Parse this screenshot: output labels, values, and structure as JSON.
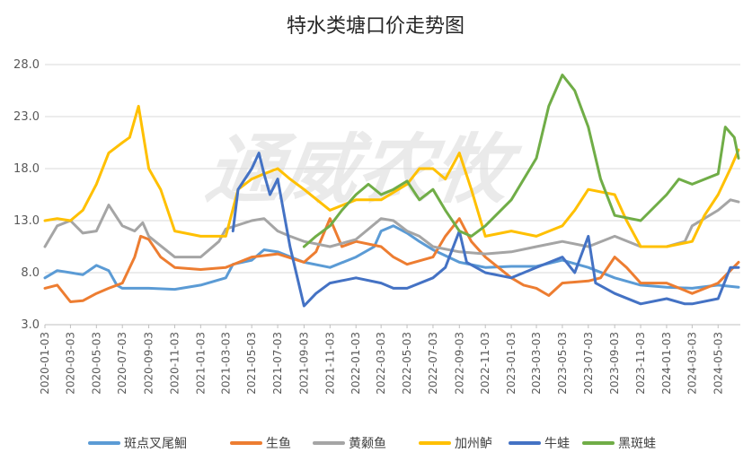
{
  "chart_data": {
    "type": "line",
    "title": "特水类塘口价走势图",
    "watermark": "通威农牧",
    "y_ticks": [
      "3.0",
      "8.0",
      "13.0",
      "18.0",
      "23.0",
      "28.0"
    ],
    "ylim": [
      3,
      28
    ],
    "x_ticks": [
      "2020-01-03",
      "2020-03-03",
      "2020-05-03",
      "2020-07-03",
      "2020-09-03",
      "2020-11-03",
      "2021-01-03",
      "2021-03-03",
      "2021-05-03",
      "2021-07-03",
      "2021-09-03",
      "2021-11-03",
      "2022-01-03",
      "2022-03-03",
      "2022-05-03",
      "2022-07-03",
      "2022-09-03",
      "2022-11-03",
      "2023-01-03",
      "2023-03-03",
      "2023-05-03",
      "2023-07-03",
      "2023-09-03",
      "2023-11-03",
      "2024-01-03",
      "2024-03-03",
      "2024-05-03"
    ],
    "legend_position": "bottom",
    "grid": true,
    "series": [
      {
        "name": "斑点叉尾鮰",
        "color": "#5b9bd5",
        "points": [
          [
            "2020-01-03",
            7.5
          ],
          [
            "2020-02-01",
            8.2
          ],
          [
            "2020-03-03",
            8.0
          ],
          [
            "2020-04-01",
            7.8
          ],
          [
            "2020-05-03",
            8.7
          ],
          [
            "2020-06-01",
            8.2
          ],
          [
            "2020-06-20",
            6.8
          ],
          [
            "2020-07-03",
            6.5
          ],
          [
            "2020-09-03",
            6.5
          ],
          [
            "2020-11-03",
            6.4
          ],
          [
            "2021-01-03",
            6.8
          ],
          [
            "2021-03-03",
            7.5
          ],
          [
            "2021-03-20",
            8.8
          ],
          [
            "2021-05-03",
            9.2
          ],
          [
            "2021-06-01",
            10.2
          ],
          [
            "2021-07-03",
            10.0
          ],
          [
            "2021-09-03",
            9.0
          ],
          [
            "2021-11-03",
            8.5
          ],
          [
            "2022-01-03",
            9.5
          ],
          [
            "2022-02-15",
            10.5
          ],
          [
            "2022-03-03",
            12.0
          ],
          [
            "2022-04-01",
            12.5
          ],
          [
            "2022-05-03",
            11.8
          ],
          [
            "2022-06-01",
            11.0
          ],
          [
            "2022-07-03",
            10.2
          ],
          [
            "2022-09-03",
            9.0
          ],
          [
            "2022-11-03",
            8.5
          ],
          [
            "2023-01-03",
            8.6
          ],
          [
            "2023-03-03",
            8.6
          ],
          [
            "2023-05-03",
            9.2
          ],
          [
            "2023-07-03",
            8.5
          ],
          [
            "2023-09-03",
            7.5
          ],
          [
            "2023-11-03",
            6.8
          ],
          [
            "2024-01-03",
            6.6
          ],
          [
            "2024-03-03",
            6.5
          ],
          [
            "2024-05-03",
            6.8
          ],
          [
            "2024-06-20",
            6.6
          ]
        ]
      },
      {
        "name": "生鱼",
        "color": "#ed7d31",
        "points": [
          [
            "2020-01-03",
            6.5
          ],
          [
            "2020-02-01",
            6.8
          ],
          [
            "2020-03-03",
            5.2
          ],
          [
            "2020-04-01",
            5.3
          ],
          [
            "2020-05-03",
            6.0
          ],
          [
            "2020-06-01",
            6.5
          ],
          [
            "2020-07-03",
            7.0
          ],
          [
            "2020-08-01",
            9.5
          ],
          [
            "2020-08-15",
            11.5
          ],
          [
            "2020-09-03",
            11.2
          ],
          [
            "2020-10-01",
            9.5
          ],
          [
            "2020-11-03",
            8.5
          ],
          [
            "2021-01-03",
            8.3
          ],
          [
            "2021-03-03",
            8.5
          ],
          [
            "2021-05-03",
            9.5
          ],
          [
            "2021-07-03",
            9.8
          ],
          [
            "2021-09-03",
            9.0
          ],
          [
            "2021-10-01",
            10.0
          ],
          [
            "2021-11-03",
            13.2
          ],
          [
            "2021-12-01",
            10.5
          ],
          [
            "2022-01-03",
            11.0
          ],
          [
            "2022-03-03",
            10.5
          ],
          [
            "2022-04-01",
            9.5
          ],
          [
            "2022-05-03",
            8.8
          ],
          [
            "2022-07-03",
            9.5
          ],
          [
            "2022-08-01",
            11.5
          ],
          [
            "2022-09-03",
            13.2
          ],
          [
            "2022-10-01",
            11.0
          ],
          [
            "2022-11-03",
            9.5
          ],
          [
            "2023-01-03",
            7.5
          ],
          [
            "2023-02-01",
            6.8
          ],
          [
            "2023-03-03",
            6.5
          ],
          [
            "2023-04-01",
            5.8
          ],
          [
            "2023-05-03",
            7.0
          ],
          [
            "2023-07-03",
            7.2
          ],
          [
            "2023-08-01",
            7.5
          ],
          [
            "2023-09-03",
            9.5
          ],
          [
            "2023-10-01",
            8.5
          ],
          [
            "2023-11-03",
            7.0
          ],
          [
            "2024-01-03",
            7.0
          ],
          [
            "2024-03-03",
            6.0
          ],
          [
            "2024-05-03",
            7.0
          ],
          [
            "2024-06-20",
            9.0
          ]
        ]
      },
      {
        "name": "黄颡鱼",
        "color": "#a5a5a5",
        "points": [
          [
            "2020-01-03",
            10.5
          ],
          [
            "2020-02-01",
            12.5
          ],
          [
            "2020-03-03",
            13.0
          ],
          [
            "2020-04-01",
            11.8
          ],
          [
            "2020-05-03",
            12.0
          ],
          [
            "2020-06-01",
            14.5
          ],
          [
            "2020-07-03",
            12.5
          ],
          [
            "2020-08-01",
            12.0
          ],
          [
            "2020-08-20",
            12.8
          ],
          [
            "2020-09-03",
            11.5
          ],
          [
            "2020-11-03",
            9.5
          ],
          [
            "2021-01-03",
            9.5
          ],
          [
            "2021-02-15",
            11.0
          ],
          [
            "2021-03-03",
            12.2
          ],
          [
            "2021-05-03",
            13.0
          ],
          [
            "2021-06-01",
            13.2
          ],
          [
            "2021-07-03",
            12.0
          ],
          [
            "2021-08-01",
            11.5
          ],
          [
            "2021-09-03",
            11.0
          ],
          [
            "2021-11-03",
            10.5
          ],
          [
            "2022-01-03",
            11.2
          ],
          [
            "2022-03-03",
            13.2
          ],
          [
            "2022-04-01",
            13.0
          ],
          [
            "2022-05-03",
            12.0
          ],
          [
            "2022-06-01",
            11.5
          ],
          [
            "2022-07-03",
            10.5
          ],
          [
            "2022-09-03",
            10.0
          ],
          [
            "2022-11-03",
            9.8
          ],
          [
            "2023-01-03",
            10.0
          ],
          [
            "2023-03-03",
            10.5
          ],
          [
            "2023-05-03",
            11.0
          ],
          [
            "2023-07-03",
            10.5
          ],
          [
            "2023-09-03",
            11.5
          ],
          [
            "2023-11-03",
            10.5
          ],
          [
            "2024-01-03",
            10.5
          ],
          [
            "2024-02-15",
            11.0
          ],
          [
            "2024-03-03",
            12.5
          ],
          [
            "2024-05-03",
            14.0
          ],
          [
            "2024-06-01",
            15.0
          ],
          [
            "2024-06-20",
            14.8
          ]
        ]
      },
      {
        "name": "加州鲈",
        "color": "#ffc000",
        "points": [
          [
            "2020-01-03",
            13.0
          ],
          [
            "2020-02-01",
            13.2
          ],
          [
            "2020-03-03",
            13.0
          ],
          [
            "2020-04-01",
            14.0
          ],
          [
            "2020-05-03",
            16.5
          ],
          [
            "2020-06-01",
            19.5
          ],
          [
            "2020-07-03",
            20.5
          ],
          [
            "2020-07-20",
            21.0
          ],
          [
            "2020-08-10",
            24.0
          ],
          [
            "2020-09-03",
            18.0
          ],
          [
            "2020-10-01",
            16.0
          ],
          [
            "2020-11-03",
            12.0
          ],
          [
            "2021-01-03",
            11.5
          ],
          [
            "2021-03-03",
            11.5
          ],
          [
            "2021-04-01",
            16.0
          ],
          [
            "2021-05-03",
            17.0
          ],
          [
            "2021-06-01",
            17.5
          ],
          [
            "2021-07-03",
            18.0
          ],
          [
            "2021-08-01",
            17.0
          ],
          [
            "2021-09-03",
            16.0
          ],
          [
            "2021-11-03",
            14.0
          ],
          [
            "2022-01-03",
            15.0
          ],
          [
            "2022-03-03",
            15.0
          ],
          [
            "2022-05-03",
            16.5
          ],
          [
            "2022-06-01",
            18.0
          ],
          [
            "2022-07-03",
            18.0
          ],
          [
            "2022-08-01",
            17.0
          ],
          [
            "2022-09-03",
            19.5
          ],
          [
            "2022-10-01",
            16.0
          ],
          [
            "2022-11-03",
            11.5
          ],
          [
            "2023-01-03",
            12.0
          ],
          [
            "2023-03-03",
            11.5
          ],
          [
            "2023-05-03",
            12.5
          ],
          [
            "2023-06-01",
            14.0
          ],
          [
            "2023-07-03",
            16.0
          ],
          [
            "2023-09-03",
            15.5
          ],
          [
            "2023-10-01",
            13.0
          ],
          [
            "2023-11-03",
            10.5
          ],
          [
            "2024-01-03",
            10.5
          ],
          [
            "2024-03-03",
            11.0
          ],
          [
            "2024-04-01",
            13.5
          ],
          [
            "2024-05-03",
            15.5
          ],
          [
            "2024-06-01",
            18.0
          ],
          [
            "2024-06-20",
            19.8
          ]
        ]
      },
      {
        "name": "牛蛙",
        "color": "#4472c4",
        "points": [
          [
            "2021-03-20",
            12.0
          ],
          [
            "2021-04-01",
            16.0
          ],
          [
            "2021-05-03",
            18.0
          ],
          [
            "2021-05-20",
            19.5
          ],
          [
            "2021-06-01",
            17.5
          ],
          [
            "2021-06-15",
            15.5
          ],
          [
            "2021-07-03",
            17.0
          ],
          [
            "2021-08-01",
            10.5
          ],
          [
            "2021-09-03",
            4.8
          ],
          [
            "2021-10-01",
            6.0
          ],
          [
            "2021-11-03",
            7.0
          ],
          [
            "2022-01-03",
            7.5
          ],
          [
            "2022-03-03",
            7.0
          ],
          [
            "2022-04-01",
            6.5
          ],
          [
            "2022-05-03",
            6.5
          ],
          [
            "2022-07-03",
            7.5
          ],
          [
            "2022-08-01",
            8.5
          ],
          [
            "2022-09-03",
            12.0
          ],
          [
            "2022-09-20",
            9.0
          ],
          [
            "2022-11-03",
            8.0
          ],
          [
            "2023-01-03",
            7.5
          ],
          [
            "2023-03-03",
            8.5
          ],
          [
            "2023-05-03",
            9.5
          ],
          [
            "2023-06-01",
            8.0
          ],
          [
            "2023-07-03",
            11.5
          ],
          [
            "2023-07-20",
            7.0
          ],
          [
            "2023-09-03",
            6.0
          ],
          [
            "2023-11-03",
            5.0
          ],
          [
            "2024-01-03",
            5.5
          ],
          [
            "2024-02-15",
            5.0
          ],
          [
            "2024-03-03",
            5.0
          ],
          [
            "2024-05-03",
            5.5
          ],
          [
            "2024-06-01",
            8.5
          ],
          [
            "2024-06-20",
            8.5
          ]
        ]
      },
      {
        "name": "黑斑蛙",
        "color": "#70ad47",
        "points": [
          [
            "2021-09-03",
            10.5
          ],
          [
            "2021-10-01",
            11.5
          ],
          [
            "2021-11-03",
            12.5
          ],
          [
            "2021-12-01",
            14.0
          ],
          [
            "2022-01-03",
            15.5
          ],
          [
            "2022-02-01",
            16.5
          ],
          [
            "2022-03-03",
            15.5
          ],
          [
            "2022-04-01",
            16.0
          ],
          [
            "2022-05-03",
            16.8
          ],
          [
            "2022-06-01",
            15.0
          ],
          [
            "2022-07-03",
            16.0
          ],
          [
            "2022-08-01",
            14.0
          ],
          [
            "2022-09-03",
            12.0
          ],
          [
            "2022-10-01",
            11.5
          ],
          [
            "2022-11-03",
            12.5
          ],
          [
            "2023-01-03",
            15.0
          ],
          [
            "2023-03-03",
            19.0
          ],
          [
            "2023-04-01",
            24.0
          ],
          [
            "2023-05-03",
            27.0
          ],
          [
            "2023-06-01",
            25.5
          ],
          [
            "2023-07-03",
            22.0
          ],
          [
            "2023-08-01",
            17.0
          ],
          [
            "2023-09-03",
            13.5
          ],
          [
            "2023-11-03",
            13.0
          ],
          [
            "2024-01-03",
            15.5
          ],
          [
            "2024-02-01",
            17.0
          ],
          [
            "2024-03-03",
            16.5
          ],
          [
            "2024-05-03",
            17.5
          ],
          [
            "2024-05-20",
            22.0
          ],
          [
            "2024-06-10",
            21.0
          ],
          [
            "2024-06-20",
            19.0
          ]
        ]
      }
    ]
  }
}
